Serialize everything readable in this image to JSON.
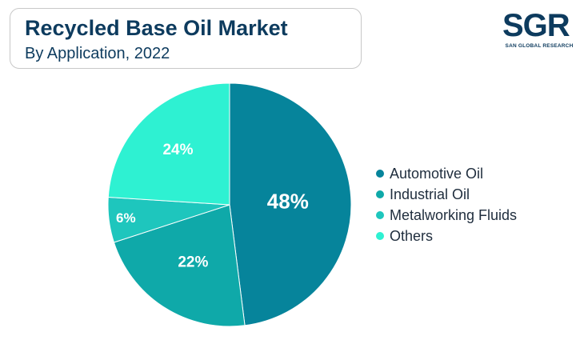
{
  "header": {
    "title": "Recycled Base Oil Market",
    "subtitle": "By Application, 2022"
  },
  "logo": {
    "mark": "SGR",
    "tagline": "SAN GLOBAL RESEARCH"
  },
  "chart_data": {
    "type": "pie",
    "title": "Recycled Base Oil Market",
    "subtitle": "By Application, 2022",
    "categories": [
      "Automotive Oil",
      "Industrial Oil",
      "Metalworking Fluids",
      "Others"
    ],
    "values": [
      48,
      22,
      6,
      24
    ],
    "labels": [
      "48%",
      "22%",
      "6%",
      "24%"
    ],
    "colors": [
      "#06849b",
      "#0fa9a9",
      "#1ec6bd",
      "#2ef1d2"
    ],
    "legend_position": "right"
  }
}
